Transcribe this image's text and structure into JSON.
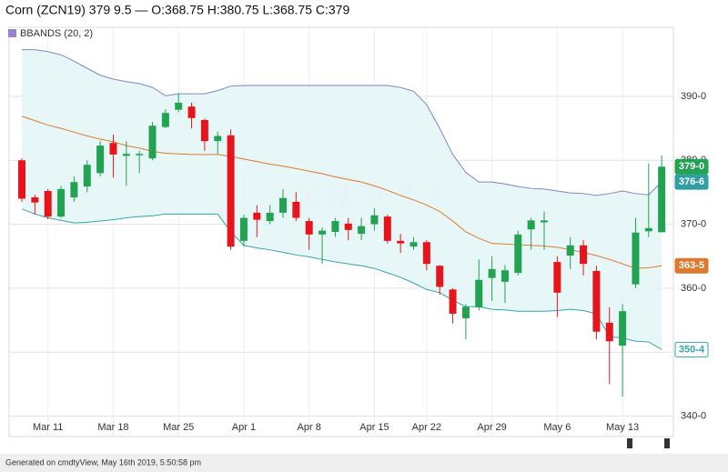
{
  "chart_data": {
    "type": "candlestick",
    "title": "Corn (ZCN19) 379 9.5 — O:368.75 H:380.75 L:368.75 C:379",
    "legend": "BBANDS (20, 2)",
    "legend_color": "#9b7fd4",
    "watermark": "ZCN19, 1 2",
    "footer": "Generated on cmdtyView, May 16th 2019, 5:50:58 pm",
    "categories": [
      null,
      null,
      "Mar 11",
      null,
      null,
      null,
      null,
      "Mar 18",
      null,
      null,
      null,
      null,
      "Mar 25",
      null,
      null,
      null,
      null,
      "Apr 1",
      null,
      null,
      null,
      null,
      "Apr 8",
      null,
      null,
      null,
      null,
      "Apr 15",
      null,
      null,
      null,
      "Apr 22",
      null,
      null,
      null,
      null,
      "Apr 29",
      null,
      null,
      null,
      null,
      "May 6",
      null,
      null,
      null,
      null,
      "May 13",
      null,
      null,
      null
    ],
    "open": [
      380,
      374.2,
      375.2,
      371.2,
      374.2,
      375.9,
      378,
      382.7,
      380.7,
      380.8,
      380.3,
      385.2,
      387.9,
      388.4,
      386.3,
      383,
      383.9,
      367.4,
      371.8,
      370.5,
      371.8,
      373.5,
      370.5,
      368.4,
      368.8,
      370.1,
      368.5,
      370,
      371.2,
      367.4,
      366.5,
      367.2,
      363.5,
      359.8,
      355.3,
      357,
      361.6,
      361,
      362.4,
      369.2,
      370.3,
      364.1,
      365.1,
      366.7,
      362.7,
      354.6,
      351,
      360.6,
      368.9,
      368.75
    ],
    "high": [
      380.3,
      374.6,
      375.5,
      376,
      377.5,
      380,
      383,
      384,
      383,
      381.5,
      386,
      388,
      390.5,
      389,
      386.5,
      384.5,
      384.8,
      371.5,
      373,
      373,
      375.5,
      375,
      371,
      369.5,
      371,
      371,
      371,
      372.5,
      371.5,
      368.5,
      368,
      367.5,
      363.6,
      360,
      357.5,
      364.5,
      365,
      363.6,
      369,
      371,
      372,
      365,
      368,
      367.5,
      363.5,
      357,
      357.5,
      371,
      379.5,
      380.75
    ],
    "low": [
      373.5,
      371.5,
      370.8,
      371,
      373.5,
      375,
      377.5,
      377.3,
      376,
      378,
      380,
      385,
      387.5,
      385,
      381.5,
      381,
      366,
      366.5,
      368,
      370,
      371,
      370.5,
      366,
      363.8,
      368,
      367.5,
      367.5,
      369,
      367,
      365.5,
      366,
      362.8,
      359,
      354.5,
      352,
      356.5,
      358,
      357.7,
      362,
      366,
      366,
      355.5,
      363,
      362,
      352,
      345,
      343,
      360,
      368,
      368.75
    ],
    "close": [
      374,
      373.4,
      371.2,
      375.5,
      376.6,
      379.3,
      382.3,
      380.9,
      381,
      381,
      385.4,
      387.4,
      389,
      386.6,
      383,
      383.8,
      366.5,
      371,
      370.7,
      371.8,
      374.1,
      371,
      368.4,
      369,
      370.5,
      369.1,
      369.7,
      371.4,
      367.4,
      367,
      367.2,
      363.8,
      360.2,
      356,
      357.1,
      361.3,
      363,
      362.8,
      368.4,
      370.6,
      370.6,
      359.3,
      366.7,
      363.8,
      353.2,
      351.7,
      356.4,
      368.7,
      369.4,
      379
    ],
    "close_label": "379-0",
    "up_color": "#21a352",
    "down_color": "#e8141c",
    "bands": {
      "fill": "#e4f5f5",
      "upper": {
        "color": "#7f86c6",
        "end_label": "376-6",
        "values": [
          397.3,
          397.3,
          397.0,
          396.5,
          395.5,
          394.4,
          393.3,
          392.7,
          392.3,
          392.0,
          391.4,
          390.1,
          390.4,
          390.4,
          390.4,
          390.9,
          391.6,
          391.7,
          391.7,
          391.7,
          391.7,
          391.7,
          391.7,
          391.7,
          391.7,
          391.7,
          391.7,
          391.7,
          391.7,
          391.4,
          390.8,
          388.7,
          385.0,
          380.9,
          378.1,
          376.6,
          376.6,
          376.3,
          375.9,
          375.6,
          375.5,
          375.2,
          374.9,
          374.8,
          374.5,
          374.8,
          375.2,
          374.8,
          374.6,
          376.6
        ]
      },
      "middle": {
        "color": "#dd7a30",
        "end_label": "363-5",
        "values": [
          386.9,
          386.2,
          385.5,
          385,
          384.4,
          383.8,
          383.3,
          382.9,
          382.3,
          381.9,
          381.4,
          381.1,
          381,
          380.9,
          380.9,
          380.9,
          380.6,
          380.2,
          379.8,
          379.4,
          379.1,
          378.7,
          378.3,
          377.9,
          377.4,
          377,
          376.6,
          376,
          375.3,
          374.5,
          373.8,
          373,
          372,
          370.5,
          368.8,
          367.8,
          367,
          366.9,
          366.8,
          366.7,
          366.6,
          366.4,
          366,
          365.6,
          365.1,
          364.5,
          363.8,
          363.1,
          363.2,
          363.5
        ]
      },
      "lower": {
        "color": "#35a5a8",
        "end_label": "350-4",
        "values": [
          372.4,
          371.6,
          371,
          370.6,
          370.2,
          370.3,
          370.5,
          370.7,
          371,
          371.2,
          371.3,
          371.6,
          371.6,
          371.6,
          371.6,
          371.6,
          368.8,
          366.7,
          366.3,
          366,
          365.6,
          365.2,
          364.9,
          364.5,
          364.1,
          363.8,
          363.5,
          363.1,
          362.4,
          361.7,
          360.8,
          359.8,
          359.3,
          358.1,
          357.1,
          357.1,
          356.7,
          356.6,
          356.4,
          356.4,
          356.4,
          356.5,
          356.7,
          356.5,
          356,
          352.4,
          352.2,
          351.7,
          351.6,
          350.4
        ]
      }
    },
    "ylim": [
      336.8,
      400.8
    ],
    "yticks": [
      {
        "value": 340,
        "label": "340-0"
      },
      {
        "value": 350,
        "label": "350-0"
      },
      {
        "value": 360,
        "label": "360-0"
      },
      {
        "value": 370,
        "label": "370-0"
      },
      {
        "value": 380,
        "label": "380-0"
      },
      {
        "value": 390,
        "label": "390-0"
      }
    ],
    "grid": true
  }
}
